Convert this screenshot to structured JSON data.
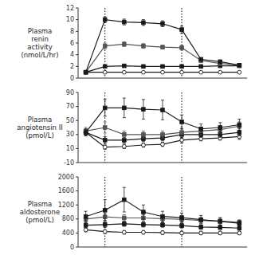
{
  "chart_data": [
    {
      "type": "line",
      "ylabel": "Plasma\nrenin\nactivity\n(nmol/L/hr)",
      "x": [
        0,
        1,
        2,
        3,
        4,
        5,
        6,
        7,
        8
      ],
      "vlines": [
        1,
        5
      ],
      "xlim": [
        -0.4,
        8.4
      ],
      "ylim": [
        0,
        12
      ],
      "yticks": [
        0,
        2,
        4,
        6,
        8,
        10,
        12
      ],
      "tick_labels": "y",
      "series": [
        {
          "color": "#1a1a1a",
          "marker": "square",
          "values": [
            1.0,
            10.0,
            9.6,
            9.5,
            9.3,
            8.3,
            3.2,
            2.8,
            2.2
          ],
          "errors": [
            0.2,
            0.5,
            0.5,
            0.5,
            0.5,
            0.6,
            0.3,
            0.3,
            0.2
          ]
        },
        {
          "color": "#555555",
          "marker": "square",
          "values": [
            1.0,
            5.5,
            5.8,
            5.5,
            5.3,
            5.2,
            3.0,
            2.5,
            2.2
          ],
          "errors": [
            0.2,
            0.5,
            0.4,
            0.4,
            0.3,
            0.4,
            0.3,
            0.3,
            0.2
          ]
        },
        {
          "color": "#1a1a1a",
          "marker": "square",
          "values": [
            1.0,
            2.0,
            2.1,
            2.0,
            2.0,
            2.0,
            2.0,
            2.1,
            2.1
          ],
          "errors": [
            0.1,
            0.2,
            0.2,
            0.2,
            0.2,
            0.2,
            0.2,
            0.1,
            0.1
          ]
        },
        {
          "color": "#1a1a1a",
          "marker": "open-circle",
          "values": [
            1.0,
            1.0,
            1.0,
            1.0,
            1.0,
            1.0,
            1.0,
            1.0,
            1.0
          ],
          "errors": [
            0.1,
            0.1,
            0.1,
            0.1,
            0.1,
            0.1,
            0.1,
            0.1,
            0.1
          ]
        }
      ]
    },
    {
      "type": "line",
      "ylabel": "Plasma\nangiotensin II\n(pmol/L)",
      "x": [
        0,
        1,
        2,
        3,
        4,
        5,
        6,
        7,
        8
      ],
      "vlines": [
        1,
        5
      ],
      "xlim": [
        -0.4,
        8.4
      ],
      "ylim": [
        -10,
        90
      ],
      "yticks": [
        -10,
        10,
        30,
        50,
        70,
        90
      ],
      "tick_labels": "y",
      "series": [
        {
          "color": "#1a1a1a",
          "marker": "square",
          "values": [
            33,
            68,
            68,
            66,
            65,
            48,
            38,
            40,
            44
          ],
          "errors": [
            5,
            12,
            14,
            14,
            14,
            10,
            7,
            7,
            8
          ]
        },
        {
          "color": "#555555",
          "marker": "square",
          "values": [
            35,
            40,
            30,
            30,
            30,
            33,
            35,
            37,
            42
          ],
          "errors": [
            5,
            8,
            5,
            5,
            5,
            6,
            5,
            5,
            6
          ]
        },
        {
          "color": "#1a1a1a",
          "marker": "square",
          "values": [
            33,
            22,
            22,
            24,
            25,
            30,
            30,
            30,
            33
          ],
          "errors": [
            4,
            5,
            4,
            4,
            4,
            5,
            4,
            4,
            5
          ]
        },
        {
          "color": "#1a1a1a",
          "marker": "open-circle",
          "values": [
            33,
            12,
            13,
            15,
            16,
            22,
            24,
            25,
            27
          ],
          "errors": [
            4,
            3,
            3,
            3,
            3,
            4,
            3,
            3,
            4
          ]
        }
      ]
    },
    {
      "type": "line",
      "ylabel": "Plasma\naldosterone\n(pmol/L)",
      "x": [
        0,
        1,
        2,
        3,
        4,
        5,
        6,
        7,
        8
      ],
      "vlines": [
        1,
        5
      ],
      "xlim": [
        -0.4,
        8.4
      ],
      "ylim": [
        0,
        2000
      ],
      "yticks": [
        0,
        400,
        800,
        1200,
        1600,
        2000
      ],
      "tick_labels": "y",
      "series": [
        {
          "color": "#1a1a1a",
          "marker": "square",
          "values": [
            870,
            1050,
            1350,
            1000,
            870,
            840,
            780,
            730,
            680
          ],
          "errors": [
            150,
            300,
            350,
            200,
            150,
            130,
            120,
            110,
            90
          ]
        },
        {
          "color": "#555555",
          "marker": "square",
          "values": [
            800,
            860,
            830,
            830,
            810,
            790,
            760,
            740,
            700
          ],
          "errors": [
            80,
            100,
            90,
            90,
            90,
            90,
            80,
            80,
            70
          ]
        },
        {
          "color": "#1a1a1a",
          "marker": "square",
          "values": [
            620,
            640,
            660,
            640,
            630,
            610,
            570,
            560,
            540
          ],
          "errors": [
            70,
            80,
            70,
            70,
            65,
            65,
            60,
            60,
            60
          ]
        },
        {
          "color": "#1a1a1a",
          "marker": "open-circle",
          "values": [
            490,
            440,
            420,
            420,
            410,
            400,
            400,
            400,
            400
          ],
          "errors": [
            55,
            55,
            50,
            50,
            50,
            50,
            50,
            50,
            50
          ]
        }
      ]
    }
  ]
}
